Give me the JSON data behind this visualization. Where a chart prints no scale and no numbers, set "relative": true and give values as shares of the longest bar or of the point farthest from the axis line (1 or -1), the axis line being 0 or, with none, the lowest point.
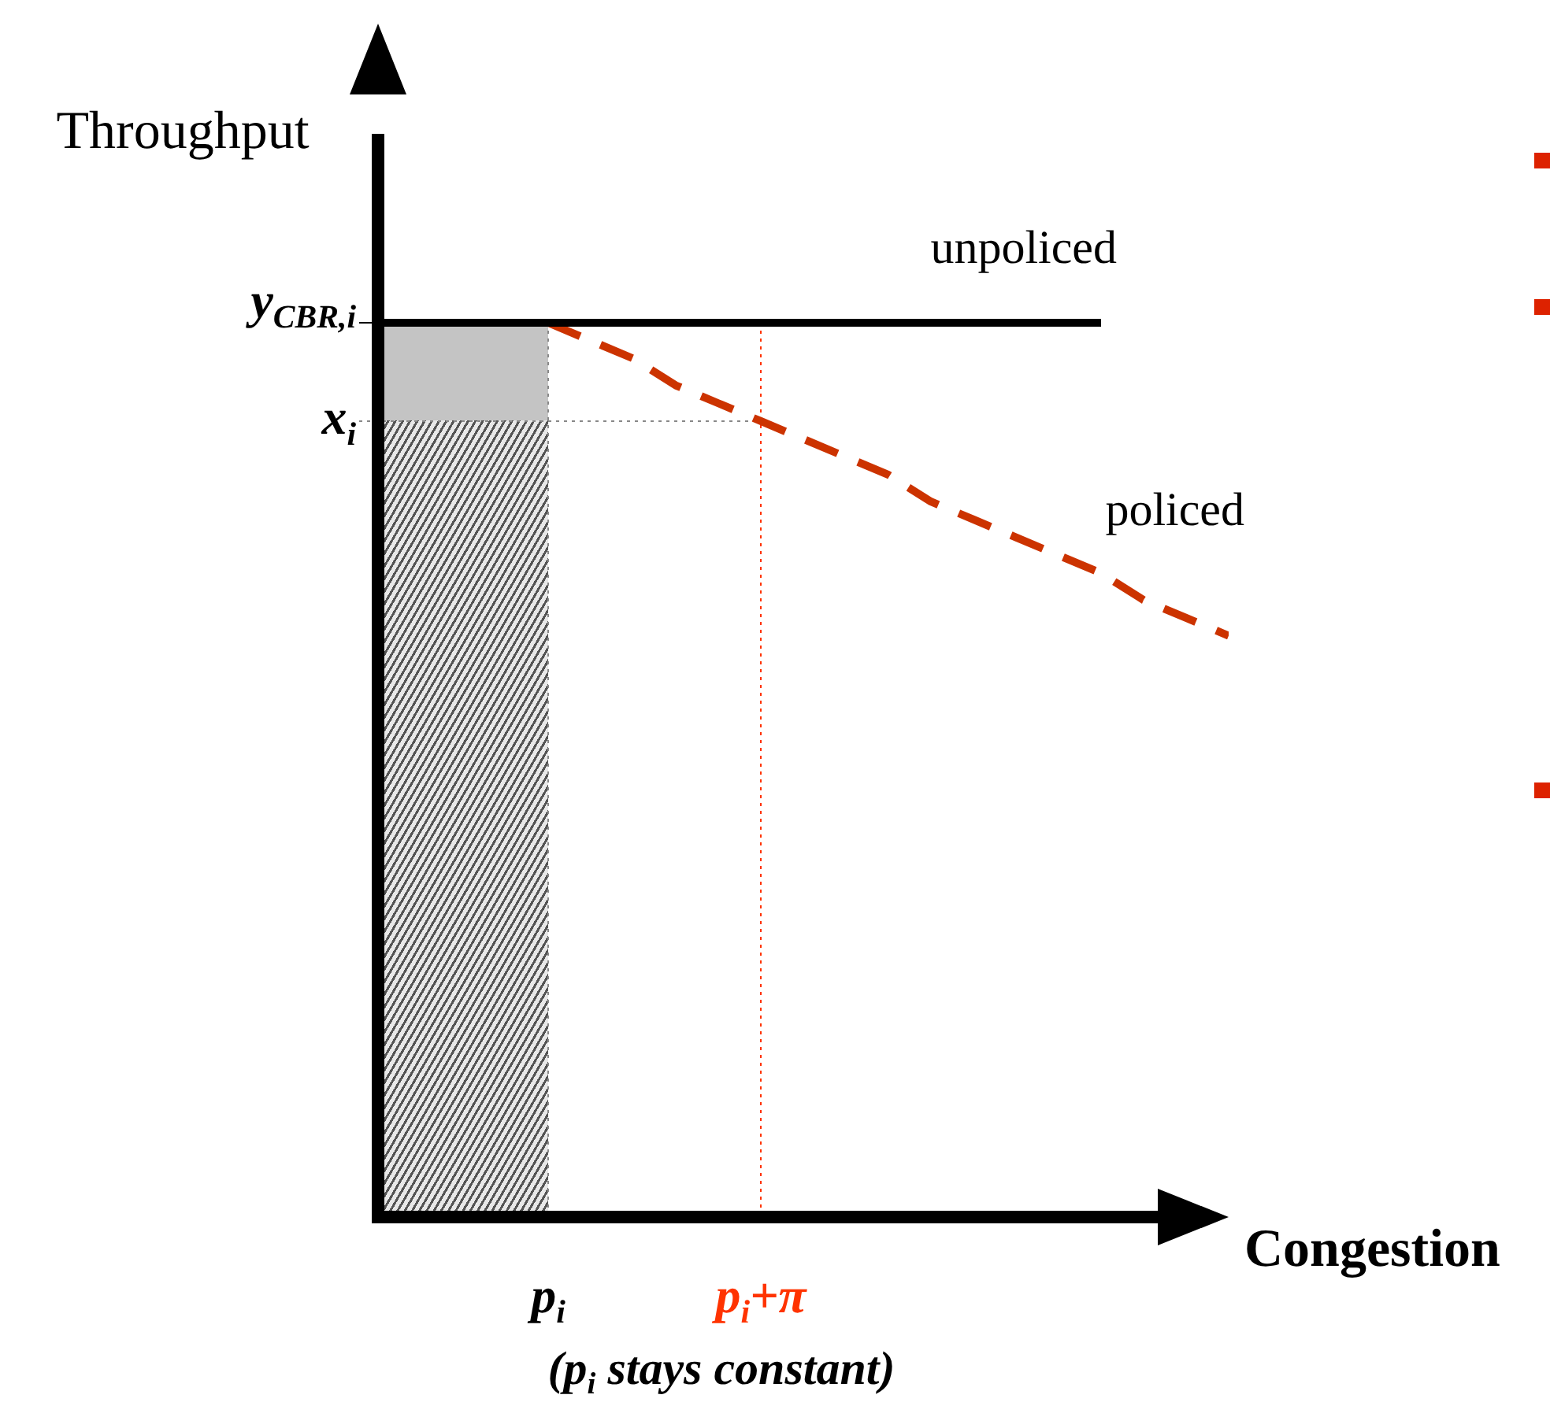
{
  "chart_data": {
    "type": "line",
    "relative": true,
    "xlabel": "Congestion",
    "ylabel": "Throughput",
    "categories": [
      null,
      null,
      null,
      null,
      "p$_{i}$",
      null,
      null,
      null,
      null,
      "p$_{i}$+π",
      null,
      null,
      null,
      null,
      null,
      null,
      null,
      null,
      null,
      null,
      null
    ],
    "series": [
      {
        "name": "unpoliced",
        "color": "#000000",
        "line_style": "solid",
        "values": [
          1,
          1,
          1,
          1,
          1,
          1,
          1,
          1,
          1,
          1,
          1,
          1,
          1,
          1,
          1,
          1,
          1,
          1,
          null,
          null,
          null
        ]
      },
      {
        "name": "policed",
        "color": "#cc3300",
        "line_style": "dashed",
        "values": [
          null,
          null,
          null,
          null,
          1.0,
          0.98,
          0.96,
          0.93,
          0.91,
          0.89,
          0.87,
          0.85,
          0.83,
          0.8,
          0.78,
          0.76,
          0.74,
          0.72,
          0.69,
          0.67,
          0.65
        ]
      }
    ],
    "ref_lines": [
      {
        "axis": "y",
        "value": 1,
        "label": "y$_{CBR,i}$",
        "color": "#000000",
        "line_style": "solid"
      },
      {
        "axis": "y",
        "value": 0.89,
        "label": "x$_{i}$",
        "color": "#888888",
        "line_style": "dotted"
      },
      {
        "axis": "x",
        "value": "p$_{i}$",
        "color": "#888888",
        "line_style": "dotted"
      },
      {
        "axis": "x",
        "value": "p$_{i}$+π",
        "color": "#ff3300",
        "line_style": "dotted"
      }
    ],
    "annotations": [
      "(p$_{i}$ stays constant)"
    ],
    "marker": "none"
  }
}
